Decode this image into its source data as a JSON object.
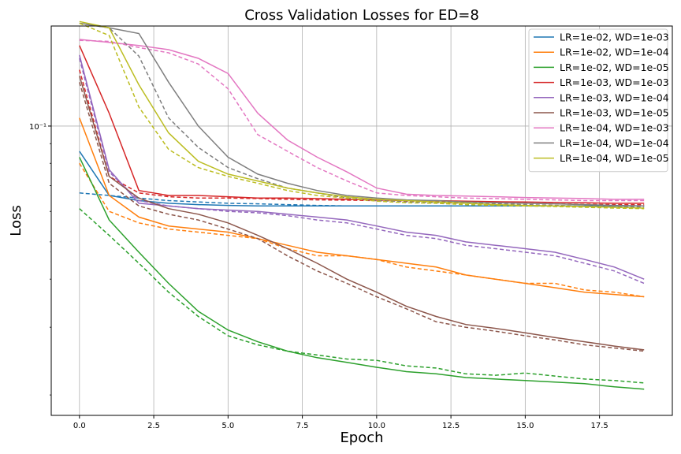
{
  "chart_data": {
    "type": "line",
    "title": "Cross Validation Losses for ED=8",
    "xlabel": "Epoch",
    "ylabel": "Loss",
    "xscale": "linear",
    "yscale": "log",
    "xlim": [
      -0.95,
      19.95
    ],
    "ylim": [
      0.0177,
      0.182
    ],
    "grid": true,
    "legend_position": "top-right",
    "xticks": [
      0.0,
      2.5,
      5.0,
      7.5,
      10.0,
      12.5,
      15.0,
      17.5
    ],
    "xtick_labels": [
      "0.0",
      "2.5",
      "5.0",
      "7.5",
      "10.0",
      "12.5",
      "15.0",
      "17.5"
    ],
    "yticks_labeled": [
      0.1
    ],
    "ytick_labels": [
      "10⁻¹"
    ],
    "yticks_minor": [
      0.02,
      0.03,
      0.04,
      0.05,
      0.06,
      0.07,
      0.08,
      0.09
    ],
    "line_styles_note": "solid and dashed variants per series",
    "x": [
      0,
      1,
      2,
      3,
      4,
      5,
      6,
      7,
      8,
      9,
      10,
      11,
      12,
      13,
      14,
      15,
      16,
      17,
      18,
      19
    ],
    "series": [
      {
        "name": "LR=1e-02, WD=1e-03",
        "color": "#1f77b4",
        "solid": [
          0.086,
          0.066,
          0.064,
          0.063,
          0.0625,
          0.0622,
          0.062,
          0.062,
          0.062,
          0.062,
          0.062,
          0.062,
          0.062,
          0.062,
          0.062,
          0.062,
          0.062,
          0.062,
          0.062,
          0.062
        ],
        "dashed": [
          0.067,
          0.066,
          0.065,
          0.064,
          0.0635,
          0.063,
          0.0628,
          0.0625,
          0.0622,
          0.062,
          0.062,
          0.062,
          0.062,
          0.062,
          0.062,
          0.062,
          0.062,
          0.062,
          0.062,
          0.062
        ]
      },
      {
        "name": "LR=1e-02, WD=1e-04",
        "color": "#ff7f0e",
        "solid": [
          0.105,
          0.066,
          0.058,
          0.055,
          0.054,
          0.053,
          0.051,
          0.049,
          0.047,
          0.046,
          0.045,
          0.044,
          0.043,
          0.041,
          0.04,
          0.039,
          0.038,
          0.037,
          0.0365,
          0.036
        ],
        "dashed": [
          0.08,
          0.06,
          0.056,
          0.054,
          0.053,
          0.052,
          0.051,
          0.048,
          0.046,
          0.046,
          0.045,
          0.043,
          0.042,
          0.041,
          0.04,
          0.039,
          0.039,
          0.0375,
          0.037,
          0.036
        ]
      },
      {
        "name": "LR=1e-02, WD=1e-05",
        "color": "#2ca02c",
        "solid": [
          0.083,
          0.057,
          0.047,
          0.039,
          0.033,
          0.0295,
          0.0275,
          0.026,
          0.025,
          0.0243,
          0.0236,
          0.023,
          0.0227,
          0.0222,
          0.022,
          0.0218,
          0.0216,
          0.0214,
          0.021,
          0.0207
        ],
        "dashed": [
          0.061,
          0.052,
          0.044,
          0.037,
          0.032,
          0.0285,
          0.027,
          0.026,
          0.0254,
          0.0248,
          0.0246,
          0.0238,
          0.0235,
          0.0227,
          0.0225,
          0.0228,
          0.0224,
          0.022,
          0.0218,
          0.0215
        ]
      },
      {
        "name": "LR=1e-03, WD=1e-03",
        "color": "#d62728",
        "solid": [
          0.162,
          0.108,
          0.068,
          0.066,
          0.066,
          0.0655,
          0.065,
          0.065,
          0.0648,
          0.0645,
          0.0643,
          0.064,
          0.064,
          0.0638,
          0.0636,
          0.0635,
          0.0633,
          0.0632,
          0.063,
          0.063
        ],
        "dashed": [
          0.14,
          0.074,
          0.067,
          0.0655,
          0.065,
          0.065,
          0.0648,
          0.0645,
          0.0643,
          0.0642,
          0.064,
          0.0638,
          0.0636,
          0.0635,
          0.0633,
          0.063,
          0.0628,
          0.0626,
          0.0625,
          0.0625
        ]
      },
      {
        "name": "LR=1e-03, WD=1e-04",
        "color": "#9467bd",
        "solid": [
          0.153,
          0.077,
          0.063,
          0.062,
          0.061,
          0.0605,
          0.06,
          0.059,
          0.058,
          0.057,
          0.055,
          0.053,
          0.052,
          0.05,
          0.049,
          0.048,
          0.047,
          0.045,
          0.043,
          0.04
        ],
        "dashed": [
          0.15,
          0.076,
          0.064,
          0.062,
          0.061,
          0.06,
          0.0595,
          0.0585,
          0.057,
          0.056,
          0.054,
          0.052,
          0.051,
          0.049,
          0.048,
          0.047,
          0.046,
          0.044,
          0.042,
          0.039
        ]
      },
      {
        "name": "LR=1e-03, WD=1e-05",
        "color": "#8c564b",
        "solid": [
          0.135,
          0.074,
          0.065,
          0.061,
          0.059,
          0.056,
          0.052,
          0.048,
          0.044,
          0.04,
          0.037,
          0.034,
          0.032,
          0.0305,
          0.0298,
          0.029,
          0.0282,
          0.0275,
          0.0268,
          0.0262
        ],
        "dashed": [
          0.13,
          0.071,
          0.062,
          0.059,
          0.057,
          0.054,
          0.051,
          0.046,
          0.042,
          0.039,
          0.036,
          0.0335,
          0.031,
          0.03,
          0.0293,
          0.0285,
          0.0278,
          0.027,
          0.0265,
          0.026
        ]
      },
      {
        "name": "LR=1e-04, WD=1e-03",
        "color": "#e377c2",
        "solid": [
          0.168,
          0.165,
          0.162,
          0.158,
          0.15,
          0.137,
          0.108,
          0.092,
          0.083,
          0.076,
          0.069,
          0.0665,
          0.066,
          0.0658,
          0.0655,
          0.0652,
          0.065,
          0.0648,
          0.0645,
          0.0645
        ],
        "dashed": [
          0.167,
          0.166,
          0.16,
          0.155,
          0.145,
          0.125,
          0.095,
          0.086,
          0.078,
          0.072,
          0.067,
          0.066,
          0.0655,
          0.065,
          0.0648,
          0.0645,
          0.0643,
          0.064,
          0.064,
          0.064
        ]
      },
      {
        "name": "LR=1e-04, WD=1e-04",
        "color": "#7f7f7f",
        "solid": [
          0.185,
          0.18,
          0.174,
          0.13,
          0.1,
          0.083,
          0.075,
          0.071,
          0.068,
          0.066,
          0.065,
          0.0643,
          0.064,
          0.0635,
          0.0632,
          0.063,
          0.0628,
          0.0625,
          0.0622,
          0.062
        ],
        "dashed": [
          0.185,
          0.18,
          0.152,
          0.105,
          0.088,
          0.078,
          0.073,
          0.069,
          0.067,
          0.065,
          0.064,
          0.0635,
          0.0632,
          0.063,
          0.0628,
          0.0625,
          0.0622,
          0.062,
          0.0618,
          0.0615
        ]
      },
      {
        "name": "LR=1e-04, WD=1e-05",
        "color": "#bcbd22",
        "solid": [
          0.187,
          0.18,
          0.128,
          0.096,
          0.081,
          0.075,
          0.072,
          0.069,
          0.067,
          0.0655,
          0.0645,
          0.064,
          0.0635,
          0.063,
          0.0625,
          0.0622,
          0.062,
          0.0618,
          0.0615,
          0.0612
        ],
        "dashed": [
          0.185,
          0.172,
          0.112,
          0.087,
          0.078,
          0.074,
          0.071,
          0.068,
          0.066,
          0.065,
          0.0638,
          0.0632,
          0.063,
          0.0625,
          0.0622,
          0.062,
          0.0618,
          0.0615,
          0.0612,
          0.061
        ]
      }
    ]
  }
}
